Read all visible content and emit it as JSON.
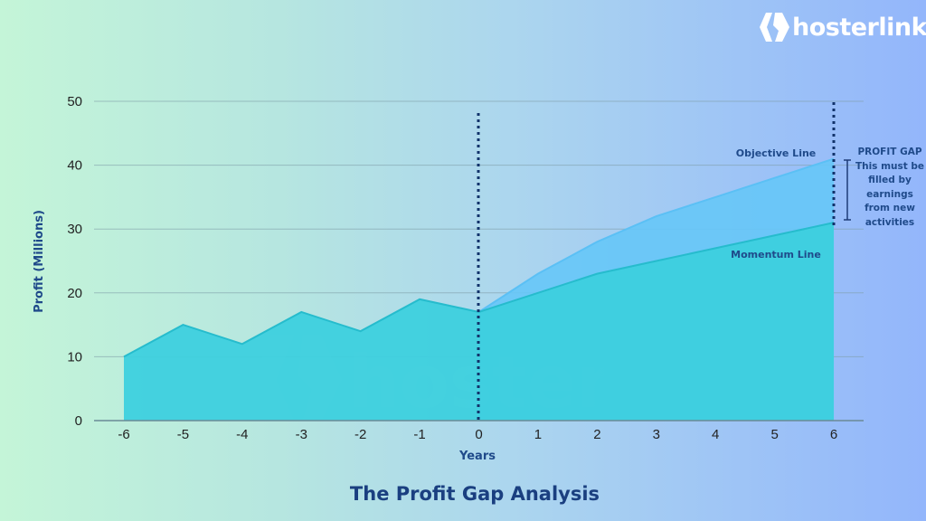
{
  "brand": {
    "name": "hosterlink",
    "watermark": "hosterlink"
  },
  "title": "The Profit Gap Analysis",
  "annotations": {
    "objective_label": "Objective Line",
    "momentum_label": "Momentum Line",
    "gap_title": "PROFIT GAP",
    "gap_text": "This must be filled by earnings from new activities"
  },
  "colors": {
    "momentum_fill": "#3dd0de",
    "objective_fill": "#66c6f7",
    "axis_label": "#1f4a8a",
    "divider": "#12336b"
  },
  "chart_data": {
    "type": "area",
    "title": "The Profit Gap Analysis",
    "xlabel": "Years",
    "ylabel": "Profit (Millions)",
    "x": [
      -6,
      -5,
      -4,
      -3,
      -2,
      -1,
      0,
      1,
      2,
      3,
      4,
      5,
      6
    ],
    "xticks": [
      "-6",
      "-5",
      "-4",
      "-3",
      "-2",
      "-1",
      "0",
      "1",
      "2",
      "3",
      "4",
      "5",
      "6"
    ],
    "yticks": [
      "0",
      "10",
      "20",
      "30",
      "40",
      "50"
    ],
    "ylim": [
      0,
      50
    ],
    "grid": "horizontal",
    "series": [
      {
        "name": "Momentum Line",
        "x": [
          -6,
          -5,
          -4,
          -3,
          -2,
          -1,
          0,
          1,
          2,
          3,
          4,
          5,
          6
        ],
        "values": [
          10,
          15,
          12,
          17,
          14,
          19,
          17,
          20,
          23,
          25,
          27,
          29,
          31
        ]
      },
      {
        "name": "Objective Line",
        "x": [
          0,
          1,
          2,
          3,
          4,
          5,
          6
        ],
        "values": [
          17,
          23,
          28,
          32,
          35,
          38,
          41
        ]
      }
    ],
    "vertical_markers": [
      {
        "x": 0,
        "style": "dotted"
      },
      {
        "x": 6,
        "style": "dotted"
      }
    ],
    "annotations": [
      "Objective Line",
      "Momentum Line",
      "PROFIT GAP This must be filled by earnings from new activities"
    ]
  }
}
